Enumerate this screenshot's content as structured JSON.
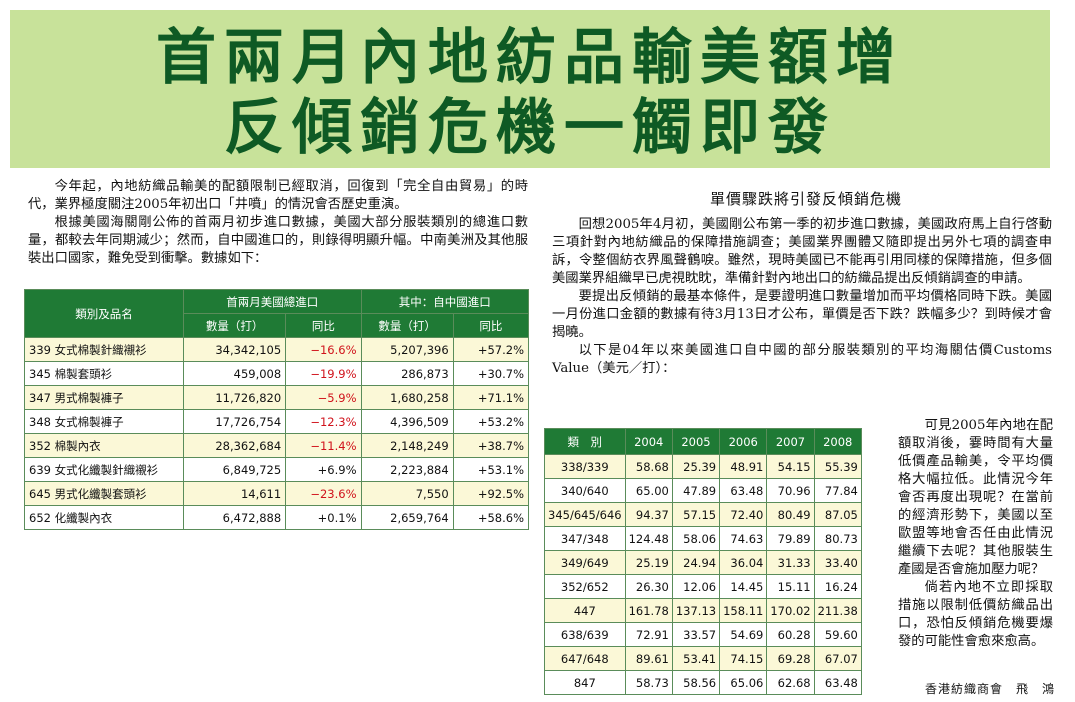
{
  "headline": {
    "line1": "首兩月內地紡品輸美額增",
    "line2": "反傾銷危機一觸即發"
  },
  "left_text": {
    "p1": "今年起，內地紡織品輸美的配額限制已經取消，回復到「完全自由貿易」的時代，業界極度關注2005年初出口「井噴」的情況會否歷史重演。",
    "p2": "根據美國海關剛公佈的首兩月初步進口數據，美國大部分服裝類別的總進口數量，都較去年同期減少；然而，自中國進口的，則錄得明顯升幅。中南美洲及其他服裝出口國家，難免受到衝擊。數據如下："
  },
  "table1": {
    "col_category": "類別及品名",
    "group_total": "首兩月美國總進口",
    "group_china": "其中：自中國進口",
    "col_qty": "數量（打）",
    "col_yoy": "同比",
    "rows": [
      {
        "name": "339 女式棉製針織襯衫",
        "total_qty": "34,342,105",
        "total_yoy": "−16.6%",
        "china_qty": "5,207,396",
        "china_yoy": "+57.2%"
      },
      {
        "name": "345 棉製套頭衫",
        "total_qty": "459,008",
        "total_yoy": "−19.9%",
        "china_qty": "286,873",
        "china_yoy": "+30.7%"
      },
      {
        "name": "347 男式棉製褲子",
        "total_qty": "11,726,820",
        "total_yoy": "−5.9%",
        "china_qty": "1,680,258",
        "china_yoy": "+71.1%"
      },
      {
        "name": "348 女式棉製褲子",
        "total_qty": "17,726,754",
        "total_yoy": "−12.3%",
        "china_qty": "4,396,509",
        "china_yoy": "+53.2%"
      },
      {
        "name": "352 棉製內衣",
        "total_qty": "28,362,684",
        "total_yoy": "−11.4%",
        "china_qty": "2,148,249",
        "china_yoy": "+38.7%"
      },
      {
        "name": "639 女式化纖製針織襯衫",
        "total_qty": "6,849,725",
        "total_yoy": "+6.9%",
        "china_qty": "2,223,884",
        "china_yoy": "+53.1%"
      },
      {
        "name": "645 男式化纖製套頭衫",
        "total_qty": "14,611",
        "total_yoy": "−23.6%",
        "china_qty": "7,550",
        "china_yoy": "+92.5%"
      },
      {
        "name": "652 化纖製內衣",
        "total_qty": "6,472,888",
        "total_yoy": "+0.1%",
        "china_qty": "2,659,764",
        "china_yoy": "+58.6%"
      }
    ]
  },
  "right_text": {
    "subhead": "單價驟跌將引發反傾銷危機",
    "p1": "回想2005年4月初，美國剛公布第一季的初步進口數據，美國政府馬上自行啓動三項針對內地紡織品的保障措施調查；美國業界團體又隨即提出另外七項的調查申訴，令整個紡衣界風聲鶴唳。雖然，現時美國已不能再引用同樣的保障措施，但多個美國業界組織早已虎視眈眈，準備針對內地出口的紡織品提出反傾銷調查的申請。",
    "p2": "要提出反傾銷的最基本條件，是要證明進口數量增加而平均價格同時下跌。美國一月份進口金額的數據有待3月13日才公布，單價是否下跌？跌幅多少？到時候才會揭曉。",
    "p3": "以下是04年以來美國進口自中國的部分服裝類別的平均海關估價Customs Value（美元／打）："
  },
  "table2": {
    "col_category": "類　別",
    "years": [
      "2004",
      "2005",
      "2006",
      "2007",
      "2008"
    ],
    "rows": [
      {
        "cat": "338/339",
        "v": [
          "58.68",
          "25.39",
          "48.91",
          "54.15",
          "55.39"
        ]
      },
      {
        "cat": "340/640",
        "v": [
          "65.00",
          "47.89",
          "63.48",
          "70.96",
          "77.84"
        ]
      },
      {
        "cat": "345/645/646",
        "v": [
          "94.37",
          "57.15",
          "72.40",
          "80.49",
          "87.05"
        ]
      },
      {
        "cat": "347/348",
        "v": [
          "124.48",
          "58.06",
          "74.63",
          "79.89",
          "80.73"
        ]
      },
      {
        "cat": "349/649",
        "v": [
          "25.19",
          "24.94",
          "36.04",
          "31.33",
          "33.40"
        ]
      },
      {
        "cat": "352/652",
        "v": [
          "26.30",
          "12.06",
          "14.45",
          "15.11",
          "16.24"
        ]
      },
      {
        "cat": "447",
        "v": [
          "161.78",
          "137.13",
          "158.11",
          "170.02",
          "211.38"
        ]
      },
      {
        "cat": "638/639",
        "v": [
          "72.91",
          "33.57",
          "54.69",
          "60.28",
          "59.60"
        ]
      },
      {
        "cat": "647/648",
        "v": [
          "89.61",
          "53.41",
          "74.15",
          "69.28",
          "67.07"
        ]
      },
      {
        "cat": "847",
        "v": [
          "58.73",
          "58.56",
          "65.06",
          "62.68",
          "63.48"
        ]
      }
    ]
  },
  "side_text": {
    "p1": "可見2005年內地在配額取消後，霎時間有大量低價產品輸美，令平均價格大幅拉低。此情況今年會否再度出現呢？在當前的經濟形勢下，美國以至歐盟等地會否任由此情況繼續下去呢？其他服裝生產國是否會施加壓力呢？",
    "p2": "倘若內地不立即採取措施以限制低價紡織品出口，恐怕反傾銷危機要爆發的可能性會愈來愈高。"
  },
  "byline": "香港紡織商會　飛　鴻"
}
